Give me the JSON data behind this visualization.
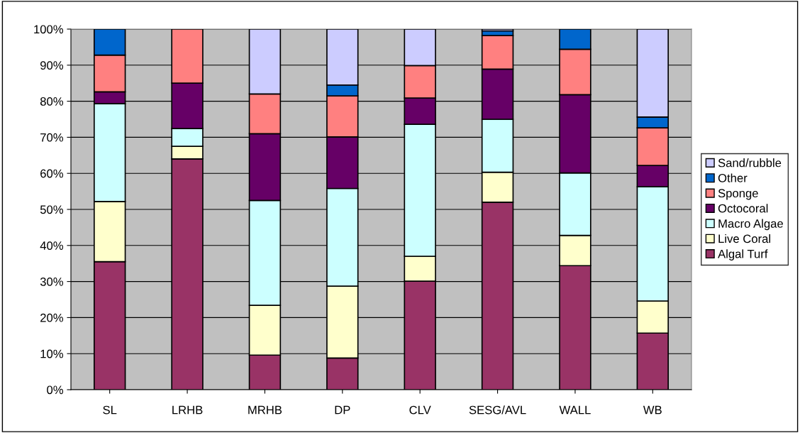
{
  "chart_data": {
    "type": "bar",
    "stacked": true,
    "categories": [
      "SL",
      "LRHB",
      "MRHB",
      "DP",
      "CLV",
      "SESG/AVL",
      "WALL",
      "WB"
    ],
    "series": [
      {
        "name": "Algal Turf",
        "color": "#993366",
        "values": [
          35.5,
          64,
          9.6,
          8.8,
          30.1,
          52,
          34.4,
          15.7
        ]
      },
      {
        "name": "Live Coral",
        "color": "#ffffcc",
        "values": [
          16.7,
          3.5,
          13.8,
          19.9,
          6.9,
          8.3,
          8.4,
          8.9
        ]
      },
      {
        "name": "Macro Algae",
        "color": "#ccffff",
        "values": [
          27.1,
          4.9,
          29.1,
          27.1,
          36.6,
          14.7,
          17.3,
          31.7
        ]
      },
      {
        "name": "Octocoral",
        "color": "#660066",
        "values": [
          3.3,
          12.6,
          18.5,
          14.3,
          7.3,
          13.9,
          21.7,
          5.9
        ]
      },
      {
        "name": "Sponge",
        "color": "#ff8080",
        "values": [
          10.2,
          15,
          11,
          11.4,
          9,
          9.3,
          12.6,
          10.4
        ]
      },
      {
        "name": "Other",
        "color": "#0066cc",
        "values": [
          7.2,
          0,
          0,
          3,
          0,
          1.3,
          5.6,
          3
        ]
      },
      {
        "name": "Sand/rubble",
        "color": "#ccccff",
        "values": [
          0,
          0,
          18,
          15.5,
          10.1,
          0.5,
          0,
          24.4
        ]
      }
    ],
    "ylim": [
      0,
      100
    ],
    "yticks": [
      {
        "value": 0,
        "label": "0%"
      },
      {
        "value": 10,
        "label": "10%"
      },
      {
        "value": 20,
        "label": "20%"
      },
      {
        "value": 30,
        "label": "30%"
      },
      {
        "value": 40,
        "label": "40%"
      },
      {
        "value": 50,
        "label": "50%"
      },
      {
        "value": 60,
        "label": "60%"
      },
      {
        "value": 70,
        "label": "70%"
      },
      {
        "value": 80,
        "label": "80%"
      },
      {
        "value": 90,
        "label": "90%"
      },
      {
        "value": 100,
        "label": "100%"
      }
    ],
    "grid": "y",
    "legend": "right"
  }
}
